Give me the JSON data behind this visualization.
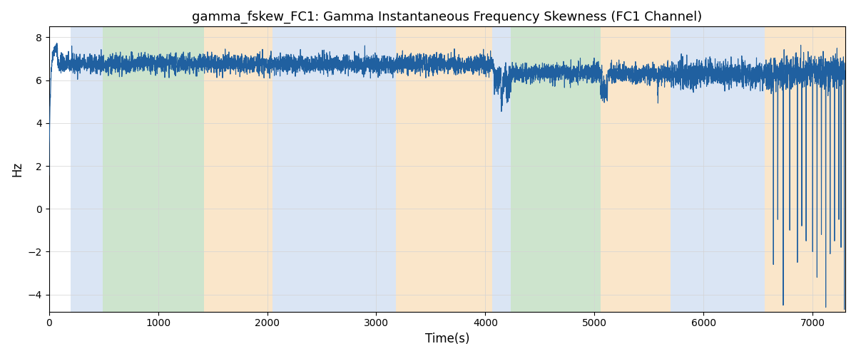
{
  "title": "gamma_fskew_FC1: Gamma Instantaneous Frequency Skewness (FC1 Channel)",
  "xlabel": "Time(s)",
  "ylabel": "Hz",
  "xlim": [
    0,
    7300
  ],
  "ylim": [
    -4.8,
    8.5
  ],
  "yticks": [
    -4,
    -2,
    0,
    2,
    4,
    6,
    8
  ],
  "xticks": [
    0,
    1000,
    2000,
    3000,
    4000,
    5000,
    6000,
    7000
  ],
  "background_color": "#ffffff",
  "line_color": "#2060a0",
  "line_width": 0.8,
  "shaded_regions": [
    {
      "start": 200,
      "end": 490,
      "color": "#aec6e8",
      "alpha": 0.45
    },
    {
      "start": 490,
      "end": 1420,
      "color": "#90c490",
      "alpha": 0.45
    },
    {
      "start": 1420,
      "end": 2050,
      "color": "#f5c98a",
      "alpha": 0.45
    },
    {
      "start": 2050,
      "end": 3180,
      "color": "#aec6e8",
      "alpha": 0.45
    },
    {
      "start": 3180,
      "end": 4060,
      "color": "#f5c98a",
      "alpha": 0.45
    },
    {
      "start": 4060,
      "end": 4230,
      "color": "#aec6e8",
      "alpha": 0.45
    },
    {
      "start": 4230,
      "end": 5060,
      "color": "#90c490",
      "alpha": 0.45
    },
    {
      "start": 5060,
      "end": 5700,
      "color": "#f5c98a",
      "alpha": 0.45
    },
    {
      "start": 5700,
      "end": 6560,
      "color": "#aec6e8",
      "alpha": 0.45
    },
    {
      "start": 6560,
      "end": 7350,
      "color": "#f5c98a",
      "alpha": 0.45
    }
  ],
  "seed": 42,
  "n_points": 7300,
  "rise_end": 80,
  "base_level_1": 6.75,
  "noise_1": 0.22,
  "base_level_2": 6.35,
  "noise_2": 0.22,
  "base_level_3": 6.3,
  "noise_3": 0.3,
  "spike_times": [
    6640,
    6680,
    6730,
    6790,
    6860,
    6900,
    6940,
    7000,
    7040,
    7080,
    7120,
    7160,
    7200,
    7240,
    7260,
    7290
  ],
  "spike_values": [
    -2.6,
    -0.5,
    -4.5,
    -1.0,
    -2.5,
    -0.8,
    -1.5,
    -2.0,
    -3.2,
    -1.2,
    -4.6,
    -2.1,
    -1.5,
    -0.5,
    -1.8,
    -4.7
  ]
}
